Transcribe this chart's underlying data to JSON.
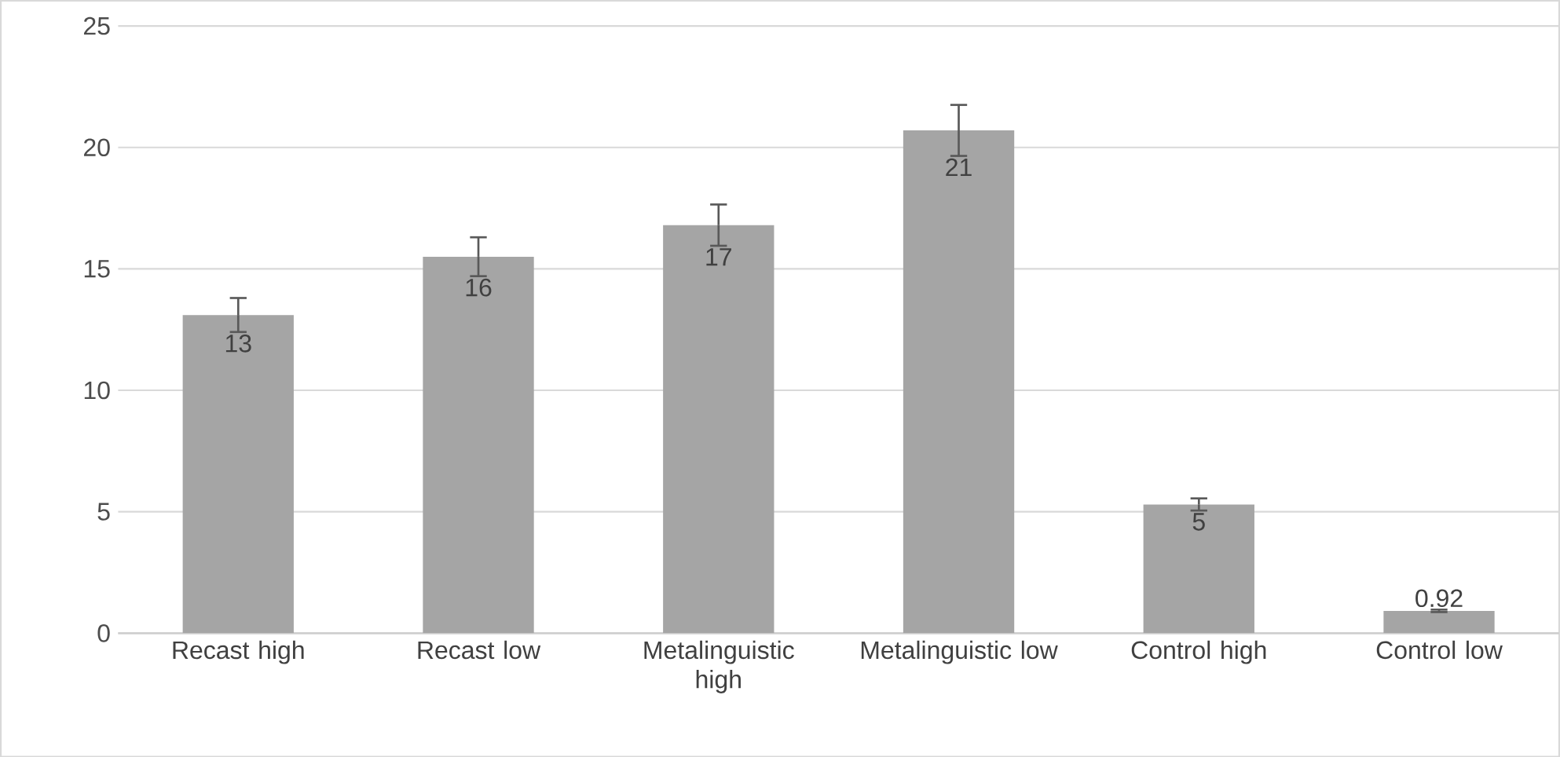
{
  "chart_data": {
    "type": "bar",
    "categories": [
      "Recast high",
      "Recast low",
      "Metalinguistic high",
      "Metalinguistic low",
      "Control high",
      "Control low"
    ],
    "values": [
      13.1,
      15.5,
      16.8,
      20.7,
      5.3,
      0.92
    ],
    "errors": [
      0.7,
      0.8,
      0.85,
      1.05,
      0.25,
      0.05
    ],
    "value_labels": [
      "13",
      "16",
      "17",
      "21",
      "5",
      "0.92"
    ],
    "color": "#a5a5a5",
    "ylim": [
      0,
      25
    ],
    "yticks": [
      0,
      5,
      10,
      15,
      20,
      25
    ],
    "grid": "y"
  }
}
